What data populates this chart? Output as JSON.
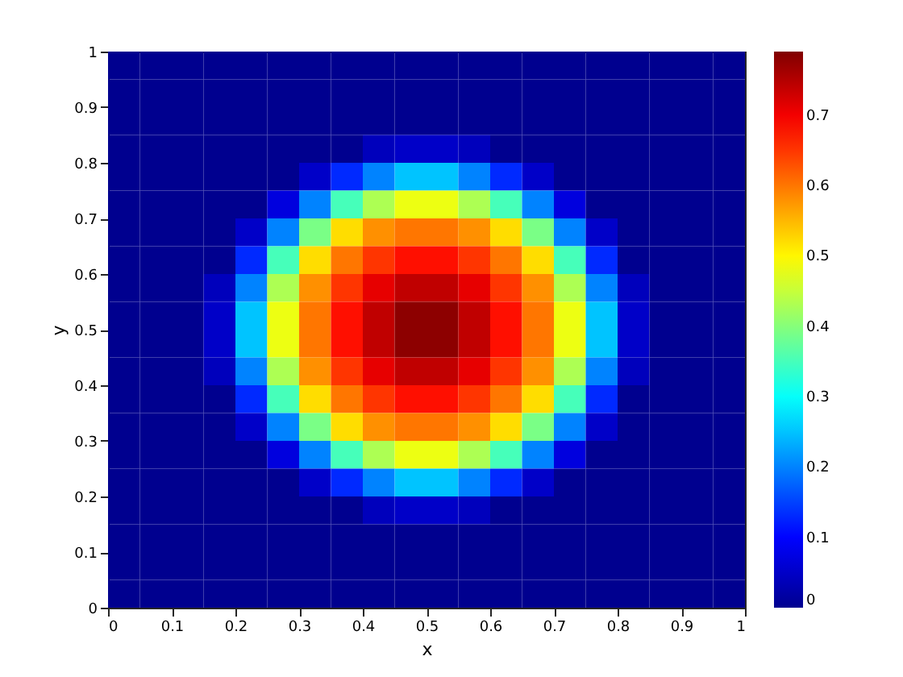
{
  "chart_data": {
    "type": "heatmap",
    "xlabel": "x",
    "ylabel": "y",
    "xlim": [
      0,
      1
    ],
    "ylim": [
      0,
      1
    ],
    "xticks": [
      0,
      0.1,
      0.2,
      0.3,
      0.4,
      0.5,
      0.6,
      0.7,
      0.8,
      0.9,
      1
    ],
    "yticks": [
      0,
      0.1,
      0.2,
      0.3,
      0.4,
      0.5,
      0.6,
      0.7,
      0.8,
      0.9,
      1
    ],
    "clim": [
      0,
      0.79
    ],
    "cticks": [
      0,
      0.1,
      0.2,
      0.3,
      0.4,
      0.5,
      0.6,
      0.7
    ],
    "cells": [
      [
        0,
        0,
        0,
        0,
        0,
        0,
        0,
        0,
        0,
        0,
        0,
        0,
        0,
        0,
        0,
        0,
        0,
        0,
        0,
        0
      ],
      [
        0,
        0,
        0,
        0,
        0,
        0,
        0,
        0,
        0,
        0,
        0,
        0,
        0,
        0,
        0,
        0,
        0,
        0,
        0,
        0
      ],
      [
        0,
        0,
        0,
        0,
        0,
        0,
        0,
        0,
        0,
        0,
        0,
        0,
        0,
        0,
        0,
        0,
        0,
        0,
        0,
        0
      ],
      [
        0,
        0,
        0,
        0,
        0,
        0,
        0,
        0,
        0.04,
        0.05,
        0.05,
        0.04,
        0,
        0,
        0,
        0,
        0,
        0,
        0,
        0
      ],
      [
        0,
        0,
        0,
        0,
        0,
        0,
        0.05,
        0.13,
        0.2,
        0.25,
        0.25,
        0.2,
        0.13,
        0.05,
        0,
        0,
        0,
        0,
        0,
        0
      ],
      [
        0,
        0,
        0,
        0,
        0,
        0.07,
        0.2,
        0.35,
        0.43,
        0.48,
        0.48,
        0.43,
        0.35,
        0.2,
        0.07,
        0,
        0,
        0,
        0,
        0
      ],
      [
        0,
        0,
        0,
        0,
        0.05,
        0.2,
        0.39,
        0.52,
        0.58,
        0.6,
        0.6,
        0.58,
        0.52,
        0.39,
        0.2,
        0.05,
        0,
        0,
        0,
        0
      ],
      [
        0,
        0,
        0,
        0,
        0.13,
        0.35,
        0.52,
        0.6,
        0.65,
        0.68,
        0.68,
        0.65,
        0.6,
        0.52,
        0.35,
        0.13,
        0,
        0,
        0,
        0
      ],
      [
        0,
        0,
        0,
        0.04,
        0.2,
        0.43,
        0.58,
        0.65,
        0.71,
        0.74,
        0.74,
        0.71,
        0.65,
        0.58,
        0.43,
        0.2,
        0.04,
        0,
        0,
        0
      ],
      [
        0,
        0,
        0,
        0.05,
        0.25,
        0.48,
        0.6,
        0.68,
        0.74,
        0.78,
        0.78,
        0.74,
        0.68,
        0.6,
        0.48,
        0.25,
        0.05,
        0,
        0,
        0
      ],
      [
        0,
        0,
        0,
        0.05,
        0.25,
        0.48,
        0.6,
        0.68,
        0.74,
        0.78,
        0.78,
        0.74,
        0.68,
        0.6,
        0.48,
        0.25,
        0.05,
        0,
        0,
        0
      ],
      [
        0,
        0,
        0,
        0.04,
        0.2,
        0.43,
        0.58,
        0.65,
        0.71,
        0.74,
        0.74,
        0.71,
        0.65,
        0.58,
        0.43,
        0.2,
        0.04,
        0,
        0,
        0
      ],
      [
        0,
        0,
        0,
        0,
        0.13,
        0.35,
        0.52,
        0.6,
        0.65,
        0.68,
        0.68,
        0.65,
        0.6,
        0.52,
        0.35,
        0.13,
        0,
        0,
        0,
        0
      ],
      [
        0,
        0,
        0,
        0,
        0.05,
        0.2,
        0.39,
        0.52,
        0.58,
        0.6,
        0.6,
        0.58,
        0.52,
        0.39,
        0.2,
        0.05,
        0,
        0,
        0,
        0
      ],
      [
        0,
        0,
        0,
        0,
        0,
        0.07,
        0.2,
        0.35,
        0.43,
        0.48,
        0.48,
        0.43,
        0.35,
        0.2,
        0.07,
        0,
        0,
        0,
        0,
        0
      ],
      [
        0,
        0,
        0,
        0,
        0,
        0,
        0.05,
        0.13,
        0.2,
        0.25,
        0.25,
        0.2,
        0.13,
        0.05,
        0,
        0,
        0,
        0,
        0,
        0
      ],
      [
        0,
        0,
        0,
        0,
        0,
        0,
        0,
        0,
        0.04,
        0.05,
        0.05,
        0.04,
        0,
        0,
        0,
        0,
        0,
        0,
        0,
        0
      ],
      [
        0,
        0,
        0,
        0,
        0,
        0,
        0,
        0,
        0,
        0,
        0,
        0,
        0,
        0,
        0,
        0,
        0,
        0,
        0,
        0
      ],
      [
        0,
        0,
        0,
        0,
        0,
        0,
        0,
        0,
        0,
        0,
        0,
        0,
        0,
        0,
        0,
        0,
        0,
        0,
        0,
        0
      ],
      [
        0,
        0,
        0,
        0,
        0,
        0,
        0,
        0,
        0,
        0,
        0,
        0,
        0,
        0,
        0,
        0,
        0,
        0,
        0,
        0
      ]
    ]
  }
}
